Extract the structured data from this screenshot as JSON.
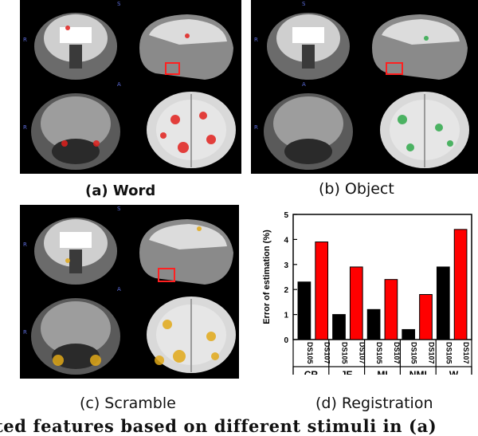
{
  "panels": {
    "a": {
      "caption": "(a) Word",
      "overlay_color": "#e0201c"
    },
    "b": {
      "caption": "(b) Object",
      "overlay_color": "#2fa84a"
    },
    "c": {
      "caption": "(c) Scramble",
      "overlay_color": "#e0a818"
    },
    "d": {
      "caption": "(d) Registration"
    }
  },
  "orientation_labels": {
    "s": "S",
    "r": "R",
    "a": "A"
  },
  "bottom_text": "ted features based on different stimuli in (a)",
  "chart_data": {
    "type": "bar",
    "title": "",
    "xlabel": "",
    "ylabel": "Error of estimation (%)",
    "ylim": [
      0,
      5
    ],
    "yticks": [
      0,
      1,
      2,
      3,
      4,
      5
    ],
    "grid": false,
    "legend": "none",
    "groups": [
      "CR",
      "JE",
      "MI",
      "NMI",
      "W"
    ],
    "categories": [
      "DS105",
      "DS107",
      "DS105",
      "DS107",
      "DS105",
      "DS107",
      "DS105",
      "DS107",
      "DS105",
      "DS107"
    ],
    "series": [
      {
        "values": [
          2.3,
          3.9,
          1.0,
          2.9,
          1.2,
          2.4,
          0.4,
          1.8,
          2.9,
          4.4
        ]
      }
    ],
    "bar_colors": [
      "#000000",
      "#ff0000",
      "#000000",
      "#ff0000",
      "#000000",
      "#ff0000",
      "#000000",
      "#ff0000",
      "#000000",
      "#ff0000"
    ]
  }
}
